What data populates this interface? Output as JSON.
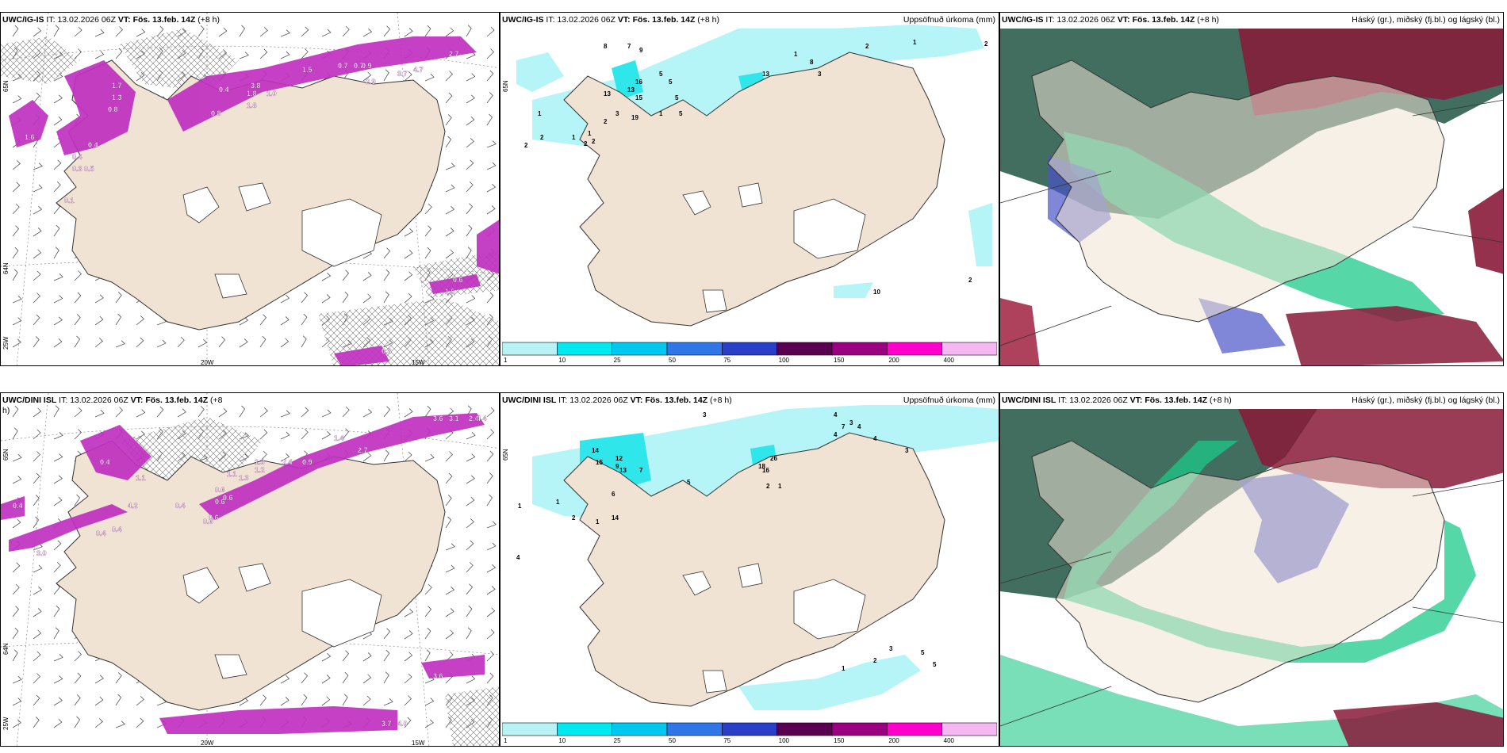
{
  "panels": [
    {
      "id": "ig-wind",
      "model": "UWC/IG-IS",
      "it_label": "IT:",
      "it_value": "13.02.2026 06Z",
      "vt_label": "VT:",
      "vt_value": "Fös. 13.feb. 14Z",
      "offset": "(+8 h)",
      "axis_labels": {
        "lat_top": "65N",
        "lat_mid": "64N",
        "lon_left": "25W",
        "lon_bottom": "20W",
        "lon_bottom2": "15W"
      },
      "values": [
        "2.7",
        "0.7",
        "0.7",
        "0.9",
        "3.7",
        "4.7",
        "2.9",
        "1.5",
        "0.4",
        "1.8",
        "3.8",
        "0.8",
        "1.8",
        "1.0",
        "1.7",
        "0.8",
        "0.4",
        "0.3",
        "0.5",
        "0.4",
        "1.3",
        "1.6",
        "0.1",
        "1.5",
        "0.6",
        "0.8"
      ]
    },
    {
      "id": "ig-precip",
      "model": "UWC/IG-IS",
      "it_label": "IT:",
      "it_value": "13.02.2026 06Z",
      "vt_label": "VT:",
      "vt_value": "Fös. 13.feb. 14Z",
      "offset": "(+8 h)",
      "right_label": "Uppsöfnuð úrkoma (mm)",
      "axis_labels": {
        "lat_top": "65N"
      },
      "values": [
        "1",
        "2",
        "2",
        "1",
        "8",
        "7",
        "9",
        "5",
        "5",
        "1",
        "13",
        "13",
        "15",
        "19",
        "5",
        "2",
        "2",
        "1",
        "2",
        "3",
        "5",
        "16",
        "13",
        "8",
        "3",
        "1",
        "2",
        "1",
        "2",
        "10",
        "2"
      ]
    },
    {
      "id": "ig-cloud",
      "model": "UWC/IG-IS",
      "it_label": "IT:",
      "it_value": "13.02.2026 06Z",
      "vt_label": "VT:",
      "vt_value": "Fös. 13.feb. 14Z",
      "offset": "(+8 h)",
      "right_label": "Háský (gr.), miðský (fj.bl.) og lágský (bl.)"
    },
    {
      "id": "dini-wind",
      "model": "UWC/DINI ISL",
      "it_label": "IT:",
      "it_value": "13.02.2026 06Z",
      "vt_label": "VT:",
      "vt_value": "Fös. 13.feb. 14Z",
      "offset": "(+8",
      "offset2": "h)",
      "axis_labels": {
        "lat_top": "65N",
        "lat_mid": "64N",
        "lon_left": "25W",
        "lon_bottom": "20W",
        "lon_bottom2": "15W"
      },
      "values": [
        "3.6",
        "3.1",
        "2.4",
        "4.4",
        "1.4",
        "2.7",
        "0.9",
        "2.4",
        "1.3",
        "1.2",
        "1.3",
        "1.1",
        "0.6",
        "0.6",
        "0.6",
        "0.6",
        "0.6",
        "0.4",
        "0.4",
        "4.2",
        "1.1",
        "0.4",
        "0.4",
        "3.0",
        "0.4",
        "3.6",
        "3.7",
        "4.0"
      ]
    },
    {
      "id": "dini-precip",
      "model": "UWC/DINI ISL",
      "it_label": "IT:",
      "it_value": "13.02.2026 06Z",
      "vt_label": "VT:",
      "vt_value": "Fös. 13.feb. 14Z",
      "offset": "(+8 h)",
      "right_label": "Uppsöfnuð úrkoma (mm)",
      "axis_labels": {
        "lat_top": "65N"
      },
      "values": [
        "3",
        "4",
        "3",
        "4",
        "7",
        "4",
        "4",
        "3",
        "9",
        "7",
        "14",
        "15",
        "12",
        "13",
        "5",
        "6",
        "14",
        "2",
        "1",
        "1",
        "1",
        "18",
        "16",
        "26",
        "2",
        "1",
        "4",
        "3",
        "2",
        "1",
        "5",
        "5"
      ]
    },
    {
      "id": "dini-cloud",
      "model": "UWC/DINI ISL",
      "it_label": "IT:",
      "it_value": "13.02.2026 06Z",
      "vt_label": "VT:",
      "vt_value": "Fös. 13.feb. 14Z",
      "offset": "(+8 h)",
      "right_label": "Háský (gr.), miðský (fj.bl.) og lágský (bl.)"
    }
  ],
  "legend": {
    "ticks": [
      "1",
      "10",
      "25",
      "50",
      "75",
      "100",
      "150",
      "200",
      "400"
    ],
    "colors": [
      "#b8f2f5",
      "#00e8f0",
      "#00c8ee",
      "#2f76e8",
      "#2a3fc8",
      "#5a0050",
      "#9a0080",
      "#ff00cc",
      "#f5b8f2"
    ]
  },
  "colors": {
    "land": "#f1e3d3",
    "precip_light": "#b5f4f7",
    "precip_mid": "#2fe6ea",
    "wind_band": "#c030c0",
    "glacier": "#ffffff",
    "high_cloud": "#2e5e4e",
    "mid_cloud": "#1ec98a",
    "low_cloud": "#4a52c8",
    "dark_red": "#8a1a3a"
  }
}
